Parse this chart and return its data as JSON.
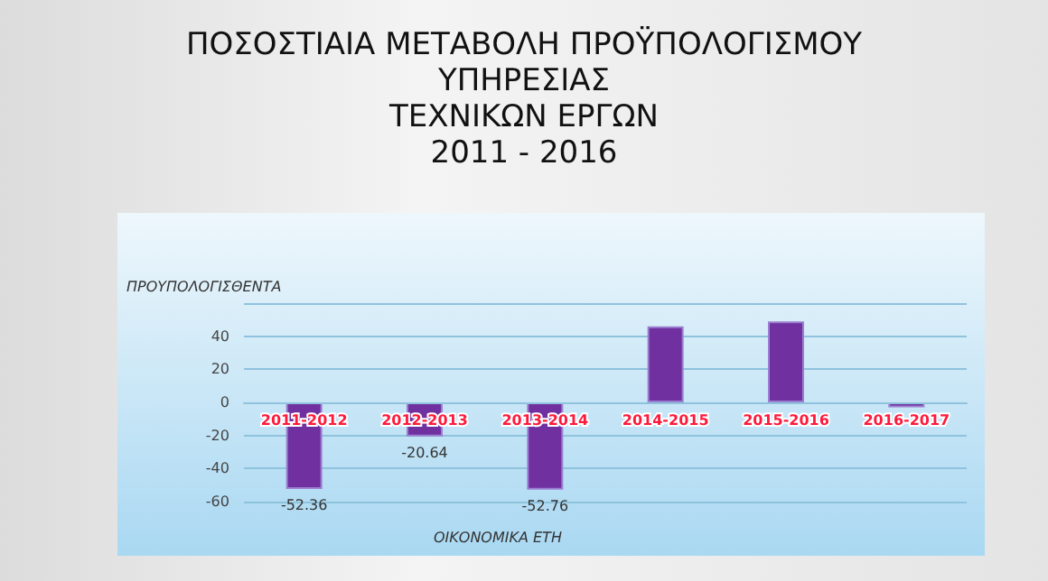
{
  "chart_data": {
    "type": "bar",
    "title": "ΠΟΣΟΣΤΙΑΙΑ ΜΕΤΑΒΟΛΗ ΠΡΟΫΠΟΛΟΓΙΣΜΟΥ\nΥΠΗΡΕΣΙΑΣ\nΤΕΧΝΙΚΩΝ ΕΡΓΩΝ\n2011 - 2016",
    "ylabel": "ΠΡΟΥΠΟΛΟΓΙΣΘΕΝΤΑ",
    "xlabel": "ΟΙΚΟΝΟΜΙΚΑ ΕΤΗ",
    "categories": [
      "2011-2012",
      "2012-2013",
      "2013-2014",
      "2014-2015",
      "2015-2016",
      "2016-2017"
    ],
    "values": [
      -52.36,
      -20.64,
      -52.76,
      46,
      49,
      -3
    ],
    "value_labels": [
      "-52.36",
      "-20.64",
      "-52.76",
      null,
      null,
      null
    ],
    "color": "#7030a0",
    "ylim": [
      -60,
      60
    ],
    "yticks": [
      -60,
      -40,
      -20,
      0,
      20,
      40,
      {
        "value": 60,
        "label": null
      }
    ],
    "grid": "y"
  }
}
